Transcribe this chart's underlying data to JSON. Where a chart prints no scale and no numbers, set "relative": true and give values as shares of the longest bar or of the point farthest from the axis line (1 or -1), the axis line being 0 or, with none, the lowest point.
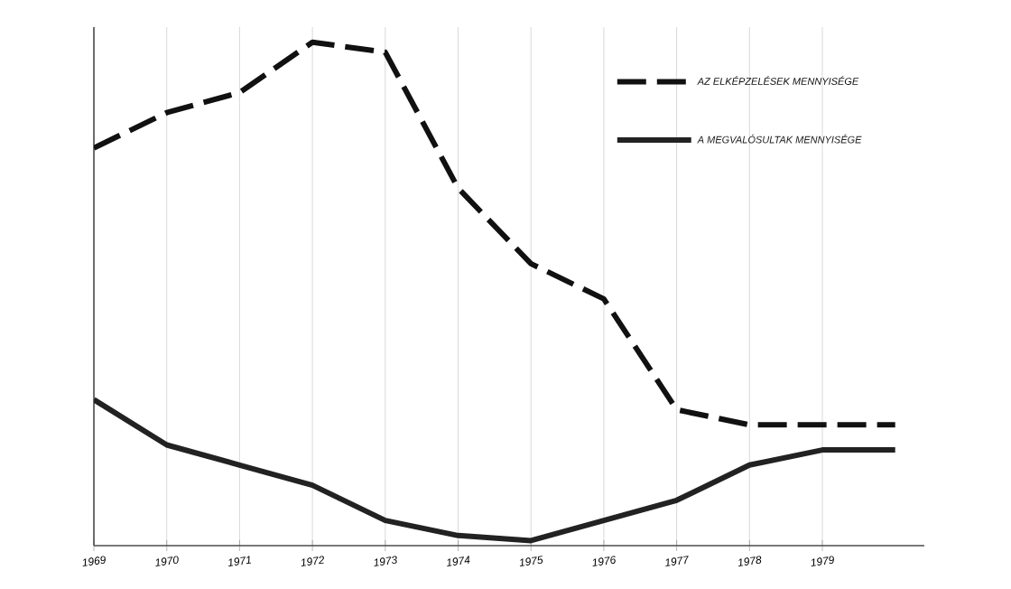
{
  "chart_data": {
    "type": "line",
    "relative": true,
    "x": [
      1969,
      1970,
      1971,
      1972,
      1973,
      1974,
      1975,
      1976,
      1977,
      1978,
      1979,
      1980
    ],
    "xlim": [
      1969,
      1980.4
    ],
    "xticks": [
      1969,
      1970,
      1971,
      1972,
      1973,
      1974,
      1975,
      1976,
      1977,
      1978,
      1979
    ],
    "series": [
      {
        "name": "AZ ELKÉPZELÉSEK MENNYISÉGE",
        "color": "#111111",
        "line_style": "dashed",
        "values": [
          0.79,
          0.86,
          0.9,
          1,
          0.98,
          0.71,
          0.56,
          0.49,
          0.27,
          0.24,
          0.24,
          0.24
        ]
      },
      {
        "name": "A MEGVALÓSULTAK MENNYISÉGE",
        "color": "#222222",
        "line_style": "solid",
        "values": [
          0.29,
          0.2,
          0.16,
          0.12,
          0.05,
          0.02,
          0.01,
          0.05,
          0.09,
          0.16,
          0.19,
          0.19
        ]
      }
    ],
    "grid": "x",
    "legend": "top right",
    "marker": "none"
  }
}
